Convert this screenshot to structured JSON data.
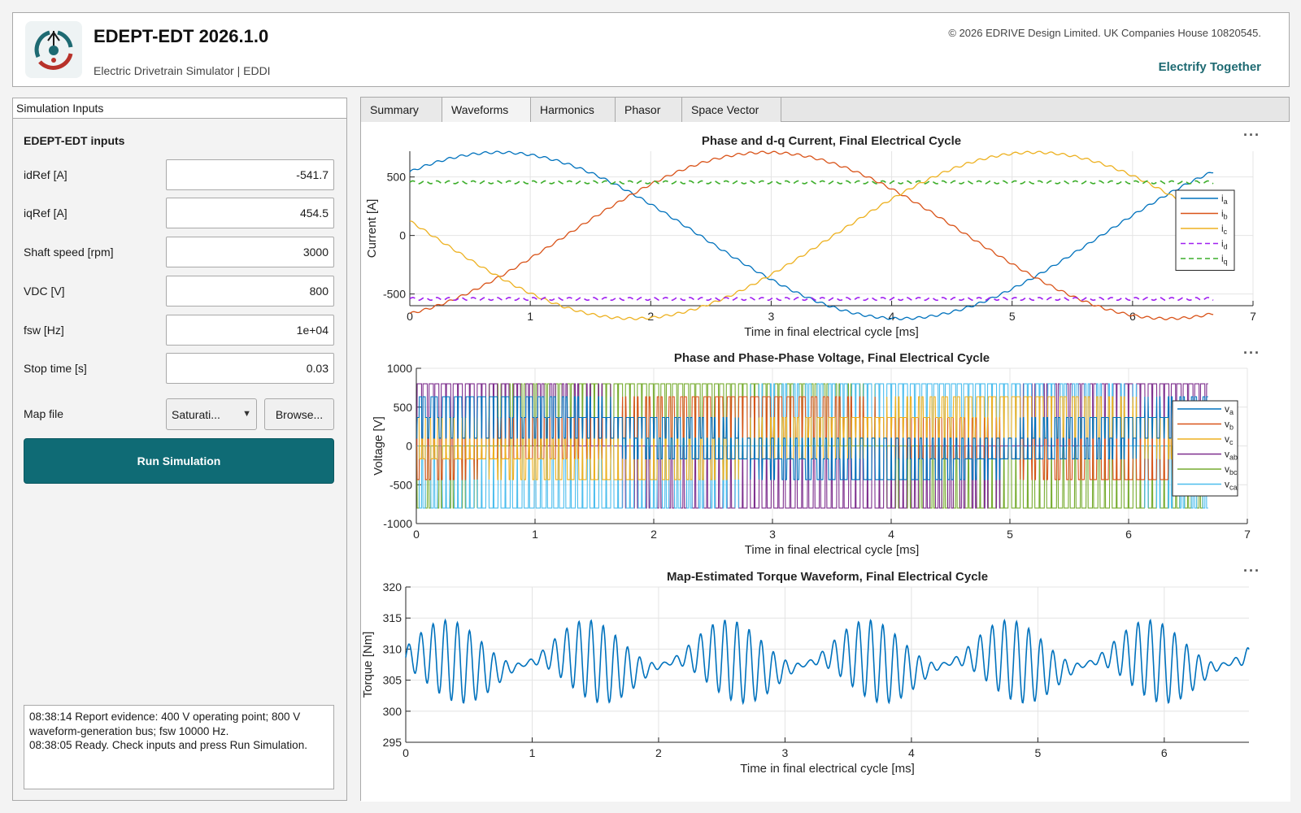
{
  "header": {
    "title": "EDEPT-EDT 2026.1.0",
    "subtitle": "Electric Drivetrain Simulator | EDDI",
    "copyright": "© 2026 EDRIVE Design Limited. UK Companies House 10820545.",
    "tagline": "Electrify Together",
    "logo_icon": "edrive-logo-icon"
  },
  "left": {
    "panel_title": "Simulation Inputs",
    "section_title": "EDEPT-EDT inputs",
    "fields": [
      {
        "label": "idRef [A]",
        "value": "-541.7"
      },
      {
        "label": "iqRef [A]",
        "value": "454.5"
      },
      {
        "label": "Shaft speed [rpm]",
        "value": "3000"
      },
      {
        "label": "VDC [V]",
        "value": "800"
      },
      {
        "label": "fsw [Hz]",
        "value": "1e+04"
      },
      {
        "label": "Stop time [s]",
        "value": "0.03"
      }
    ],
    "map_label": "Map file",
    "map_value": "Saturati...",
    "browse_label": "Browse...",
    "run_label": "Run Simulation",
    "log_lines": [
      "08:38:14  Report evidence: 400 V operating point; 800 V waveform-generation bus; fsw 10000 Hz.",
      "08:38:05  Ready. Check inputs and press Run Simulation."
    ]
  },
  "tabs": [
    "Summary",
    "Waveforms",
    "Harmonics",
    "Phasor",
    "Space Vector"
  ],
  "active_tab": "Waveforms",
  "colors": {
    "accent": "#0f6b75",
    "tagline": "#1e6a72",
    "blue": "#0072BD",
    "orange": "#D95319",
    "yellow": "#EDB120",
    "purple": "#7E2F8E",
    "green": "#77AC30",
    "cyan": "#4DBEEE"
  },
  "chart_data": [
    {
      "type": "line",
      "title": "Phase and d-q Current, Final Electrical Cycle",
      "xlabel": "Time in final electrical cycle [ms]",
      "ylabel": "Current [A]",
      "xlim": [
        0,
        7
      ],
      "ylim": [
        -600,
        720
      ],
      "xticks": [
        0,
        1,
        2,
        3,
        4,
        5,
        6,
        7
      ],
      "yticks": [
        -500,
        0,
        500
      ],
      "x_end": 6.67,
      "legend": "right",
      "series": [
        {
          "name": "ia",
          "sub": "a",
          "amplitude": 710,
          "phase_deg": 50,
          "style": "solid",
          "color": "#0072BD"
        },
        {
          "name": "ib",
          "sub": "b",
          "amplitude": 710,
          "phase_deg": -70,
          "style": "solid",
          "color": "#D95319"
        },
        {
          "name": "ic",
          "sub": "c",
          "amplitude": 710,
          "phase_deg": 170,
          "style": "solid",
          "color": "#EDB120"
        },
        {
          "name": "id",
          "sub": "d",
          "value": -541.7,
          "style": "dashed",
          "color": "#A020F0"
        },
        {
          "name": "iq",
          "sub": "q",
          "value": 454.5,
          "style": "dashed",
          "color": "#3DAE2B"
        }
      ]
    },
    {
      "type": "line",
      "title": "Phase and Phase-Phase Voltage, Final Electrical Cycle",
      "xlabel": "Time in final electrical cycle [ms]",
      "ylabel": "Voltage [V]",
      "xlim": [
        0,
        7
      ],
      "ylim": [
        -1000,
        1000
      ],
      "xticks": [
        0,
        1,
        2,
        3,
        4,
        5,
        6,
        7
      ],
      "yticks": [
        -1000,
        -500,
        0,
        500,
        1000
      ],
      "x_end": 6.67,
      "legend": "right",
      "series": [
        {
          "name": "va",
          "sub": "a",
          "color": "#0072BD"
        },
        {
          "name": "vb",
          "sub": "b",
          "color": "#D95319"
        },
        {
          "name": "vc",
          "sub": "c",
          "color": "#EDB120"
        },
        {
          "name": "vab",
          "sub": "ab",
          "color": "#7E2F8E"
        },
        {
          "name": "vbc",
          "sub": "bc",
          "color": "#77AC30"
        },
        {
          "name": "vca",
          "sub": "ca",
          "color": "#4DBEEE"
        }
      ]
    },
    {
      "type": "line",
      "title": "Map-Estimated Torque Waveform, Final Electrical Cycle",
      "xlabel": "Time in final electrical cycle [ms]",
      "ylabel": "Torque [Nm]",
      "xlim": [
        0,
        6.67
      ],
      "ylim": [
        295,
        320
      ],
      "xticks": [
        0,
        1,
        2,
        3,
        4,
        5,
        6
      ],
      "yticks": [
        295,
        300,
        305,
        310,
        315,
        320
      ],
      "mean": 307.8,
      "series": [
        {
          "name": "torque",
          "color": "#0072BD"
        }
      ]
    }
  ]
}
